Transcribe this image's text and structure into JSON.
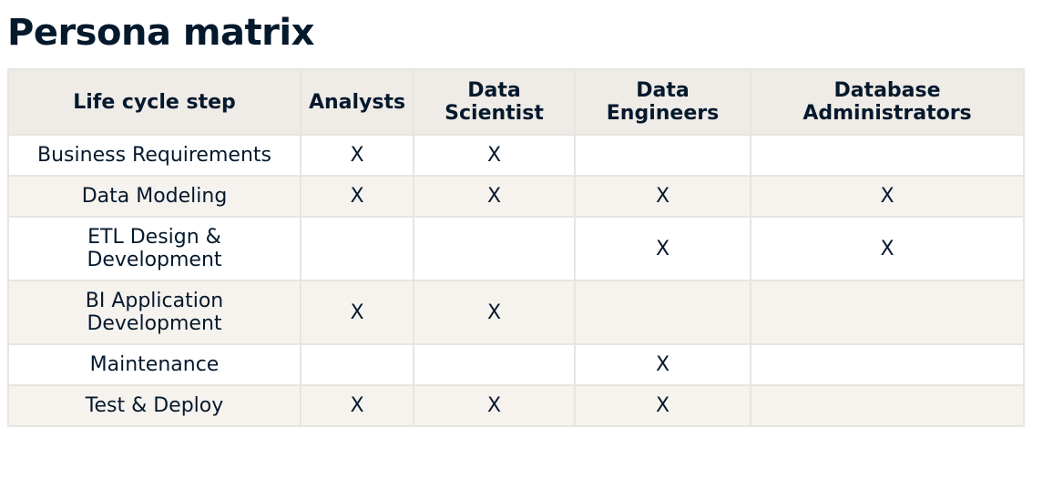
{
  "title": "Persona matrix",
  "table": {
    "headers": [
      "Life cycle step",
      "Analysts",
      [
        "Data",
        "Scientist"
      ],
      [
        "Data",
        "Engineers"
      ],
      [
        "Database",
        "Administrators"
      ]
    ],
    "rows": [
      {
        "step": [
          "Business Requirements"
        ],
        "cells": [
          "X",
          "X",
          "",
          ""
        ]
      },
      {
        "step": [
          "Data Modeling"
        ],
        "cells": [
          "X",
          "X",
          "X",
          "X"
        ]
      },
      {
        "step": [
          "ETL Design &",
          "Development"
        ],
        "cells": [
          "",
          "",
          "X",
          "X"
        ]
      },
      {
        "step": [
          "BI Application",
          "Development"
        ],
        "cells": [
          "X",
          "X",
          "",
          ""
        ]
      },
      {
        "step": [
          "Maintenance"
        ],
        "cells": [
          "",
          "",
          "X",
          ""
        ]
      },
      {
        "step": [
          "Test & Deploy"
        ],
        "cells": [
          "X",
          "X",
          "X",
          ""
        ]
      }
    ]
  }
}
